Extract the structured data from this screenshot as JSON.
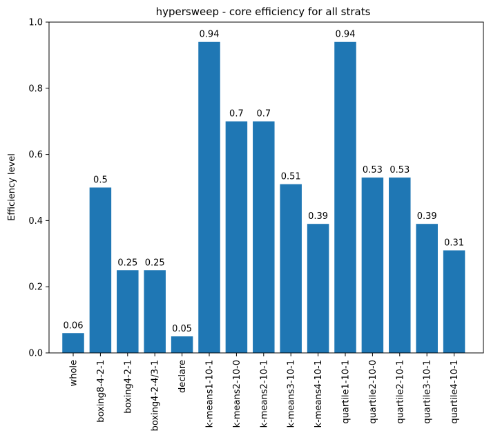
{
  "chart_data": {
    "type": "bar",
    "title": "hypersweep - core efficiency for all strats",
    "xlabel": "",
    "ylabel": "Efficiency level",
    "ylim": [
      0,
      1.0
    ],
    "yticks": [
      "0.0",
      "0.2",
      "0.4",
      "0.6",
      "0.8",
      "1.0"
    ],
    "categories": [
      "whole",
      "boxing8-4-2-1",
      "boxing4-2-1",
      "boxing4-2-4/3-1",
      "declare",
      "k-means1-10-1",
      "k-means2-10-0",
      "k-means2-10-1",
      "k-means3-10-1",
      "k-means4-10-1",
      "quartile1-10-1",
      "quartile2-10-0",
      "quartile2-10-1",
      "quartile3-10-1",
      "quartile4-10-1"
    ],
    "values": [
      0.06,
      0.5,
      0.25,
      0.25,
      0.05,
      0.94,
      0.7,
      0.7,
      0.51,
      0.39,
      0.94,
      0.53,
      0.53,
      0.39,
      0.31
    ],
    "data_labels": [
      "0.06",
      "0.5",
      "0.25",
      "0.25",
      "0.05",
      "0.94",
      "0.7",
      "0.7",
      "0.51",
      "0.39",
      "0.94",
      "0.53",
      "0.53",
      "0.39",
      "0.31"
    ],
    "bar_color": "#1f77b4",
    "grid": false,
    "legend": "none"
  }
}
